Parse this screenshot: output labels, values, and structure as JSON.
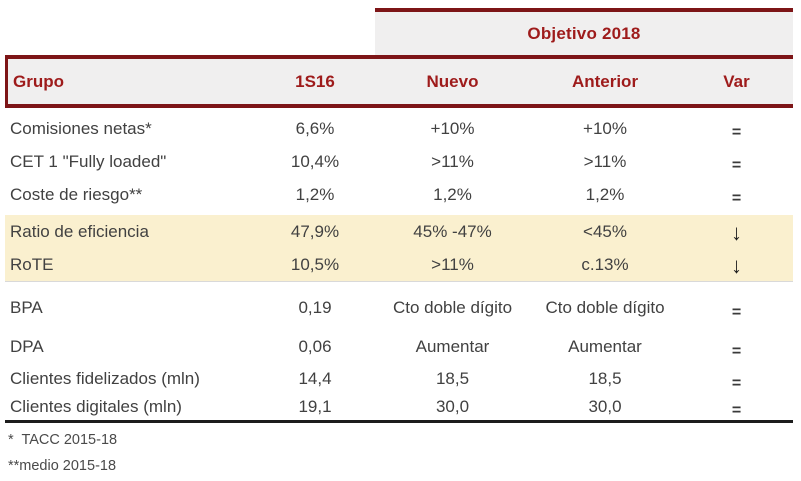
{
  "banner": {
    "label": "Objetivo 2018"
  },
  "columns": {
    "grupo": "Grupo",
    "s1_16": "1S16",
    "nuevo": "Nuevo",
    "anterior": "Anterior",
    "var": "Var"
  },
  "rows": [
    {
      "label": "Comisiones netas*",
      "s1_16": "6,6%",
      "nuevo": "+10%",
      "anterior": "+10%",
      "var": "=",
      "highlight": false
    },
    {
      "label": "CET 1 \"Fully loaded\"",
      "s1_16": "10,4%",
      "nuevo": ">11%",
      "anterior": ">11%",
      "var": "=",
      "highlight": false
    },
    {
      "label": "Coste de riesgo**",
      "s1_16": "1,2%",
      "nuevo": "1,2%",
      "anterior": "1,2%",
      "var": "=",
      "highlight": false
    },
    {
      "label": "Ratio de eficiencia",
      "s1_16": "47,9%",
      "nuevo": "45% -47%",
      "anterior": "<45%",
      "var": "↓",
      "highlight": true
    },
    {
      "label": "RoTE",
      "s1_16": "10,5%",
      "nuevo": ">11%",
      "anterior": "c.13%",
      "var": "↓",
      "highlight": true
    },
    {
      "label": "BPA",
      "s1_16": "0,19",
      "nuevo": "Cto doble dígito",
      "anterior": "Cto doble dígito",
      "var": "=",
      "highlight": false
    },
    {
      "label": "DPA",
      "s1_16": "0,06",
      "nuevo": "Aumentar",
      "anterior": "Aumentar",
      "var": "=",
      "highlight": false
    },
    {
      "label": "Clientes fidelizados (mln)",
      "s1_16": "14,4",
      "nuevo": "18,5",
      "anterior": "18,5",
      "var": "=",
      "highlight": false
    },
    {
      "label": "Clientes digitales (mln)",
      "s1_16": "19,1",
      "nuevo": "30,0",
      "anterior": "30,0",
      "var": "=",
      "highlight": false
    }
  ],
  "footnotes": [
    "*  TACC 2015-18",
    "**medio 2015-18"
  ],
  "colors": {
    "accent_red": "#9E1B1B",
    "line_red": "#7D1517",
    "header_bg": "#F0EFEF",
    "highlight": "#FAF0CF",
    "text": "#414141",
    "black_line": "#1D1D1D"
  }
}
